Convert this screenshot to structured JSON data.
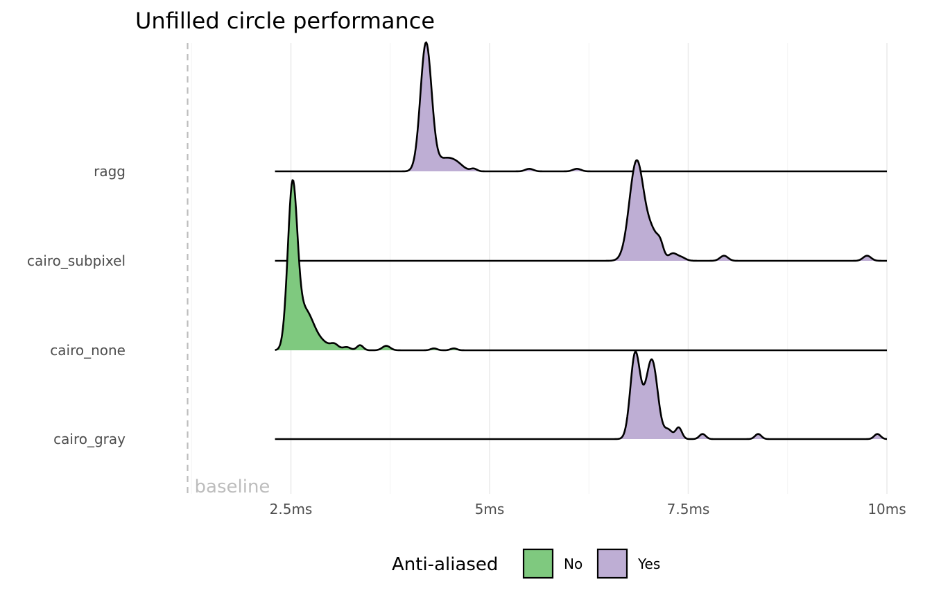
{
  "chart_data": {
    "type": "ridgeline",
    "title": "Unfilled circle performance",
    "xlabel": "",
    "ylabel": "",
    "x_unit": "ms",
    "xlim": [
      0.7,
      10
    ],
    "x_ticks": [
      2.5,
      5,
      7.5,
      10
    ],
    "x_tick_labels": [
      "2.5ms",
      "5ms",
      "7.5ms",
      "10ms"
    ],
    "density_range": [
      2.3,
      10
    ],
    "baseline": {
      "value": 1.2,
      "label": "baseline"
    },
    "categories": [
      "ragg",
      "cairo_subpixel",
      "cairo_none",
      "cairo_gray"
    ],
    "series": [
      {
        "name": "ragg",
        "anti_aliased": "Yes",
        "peaks": [
          [
            4.2,
            1.0,
            0.07
          ],
          [
            4.45,
            0.1,
            0.12
          ],
          [
            4.6,
            0.03,
            0.08
          ],
          [
            4.8,
            0.02,
            0.04
          ],
          [
            5.5,
            0.02,
            0.05
          ],
          [
            6.1,
            0.02,
            0.05
          ]
        ]
      },
      {
        "name": "cairo_subpixel",
        "anti_aliased": "Yes",
        "peaks": [
          [
            6.85,
            0.78,
            0.09
          ],
          [
            7.05,
            0.2,
            0.08
          ],
          [
            7.15,
            0.08,
            0.04
          ],
          [
            7.3,
            0.05,
            0.05
          ],
          [
            7.4,
            0.03,
            0.06
          ],
          [
            7.95,
            0.04,
            0.05
          ],
          [
            9.75,
            0.04,
            0.05
          ]
        ]
      },
      {
        "name": "cairo_none",
        "anti_aliased": "No",
        "peaks": [
          [
            2.52,
            1.25,
            0.06
          ],
          [
            2.68,
            0.3,
            0.1
          ],
          [
            2.88,
            0.06,
            0.1
          ],
          [
            3.05,
            0.04,
            0.05
          ],
          [
            3.2,
            0.025,
            0.05
          ],
          [
            3.37,
            0.04,
            0.04
          ],
          [
            3.7,
            0.035,
            0.05
          ],
          [
            4.3,
            0.015,
            0.04
          ],
          [
            4.55,
            0.015,
            0.04
          ]
        ]
      },
      {
        "name": "cairo_gray",
        "anti_aliased": "Yes",
        "peaks": [
          [
            6.83,
            0.63,
            0.06
          ],
          [
            7.05,
            0.55,
            0.07
          ],
          [
            6.95,
            0.15,
            0.08
          ],
          [
            7.25,
            0.07,
            0.05
          ],
          [
            7.38,
            0.09,
            0.04
          ],
          [
            7.68,
            0.04,
            0.04
          ],
          [
            8.38,
            0.04,
            0.04
          ],
          [
            9.88,
            0.04,
            0.04
          ]
        ]
      }
    ],
    "colors": {
      "No": "#7fc97f",
      "Yes": "#beaed4"
    },
    "legend": {
      "title": "Anti-aliased",
      "position": "bottom",
      "entries": [
        "No",
        "Yes"
      ]
    },
    "grid": true
  }
}
